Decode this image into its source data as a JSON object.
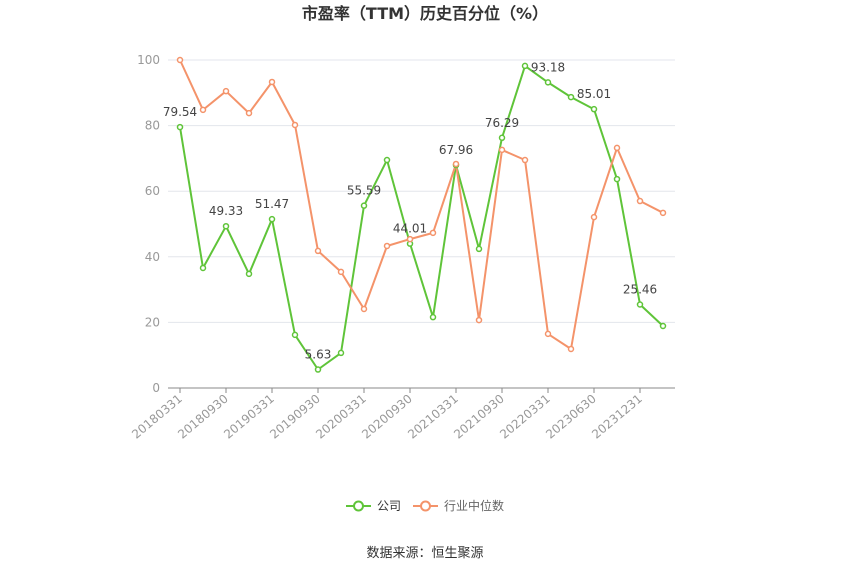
{
  "source": "数据来源：恒生聚源",
  "chart_data": {
    "type": "line",
    "title": "市盈率（TTM）历史百分位（%）",
    "xlabel": "",
    "ylabel": "",
    "categories": [
      "20180331",
      "",
      "20180930",
      "",
      "20190331",
      "",
      "20190930",
      "",
      "20200331",
      "",
      "20200930",
      "",
      "20210331",
      "",
      "20210930",
      "",
      "20220331",
      "",
      "20230630",
      "",
      "20231231",
      ""
    ],
    "ylim": [
      0,
      100
    ],
    "yticks": [
      0,
      20,
      40,
      60,
      80,
      100
    ],
    "grid": "horizontal",
    "legend_position": "bottom",
    "series": [
      {
        "name": "公司",
        "color": "#5fc439",
        "values": [
          79.54,
          36.6,
          49.33,
          34.8,
          51.47,
          16.2,
          5.63,
          10.7,
          55.59,
          69.5,
          44.01,
          21.6,
          67.96,
          42.4,
          76.29,
          98.2,
          93.18,
          88.7,
          85.01,
          63.7,
          25.46,
          18.9
        ],
        "data_labels": [
          "79.54",
          null,
          "49.33",
          null,
          "51.47",
          null,
          "5.63",
          null,
          "55.59",
          null,
          "44.01",
          null,
          "67.96",
          null,
          "76.29",
          null,
          "93.18",
          null,
          "85.01",
          null,
          "25.46",
          null
        ]
      },
      {
        "name": "行业中位数",
        "color": "#f4936a",
        "values": [
          100,
          84.8,
          90.5,
          83.8,
          93.3,
          80.2,
          41.8,
          35.4,
          24.1,
          43.3,
          45.4,
          47.3,
          68.3,
          20.7,
          72.6,
          69.5,
          16.5,
          11.9,
          52.1,
          73.2,
          57.0,
          53.4
        ]
      }
    ]
  }
}
